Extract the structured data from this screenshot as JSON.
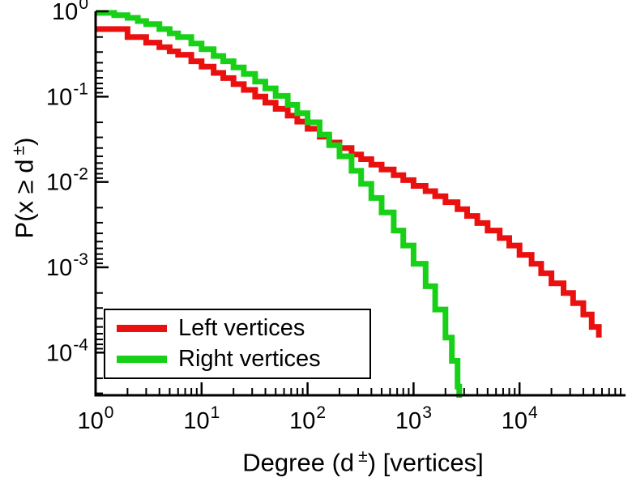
{
  "chart_data": {
    "type": "line",
    "scale": "log-log",
    "title": "",
    "xlabel": {
      "pre": "Degree (d",
      "sup": "±",
      "post": ") [vertices]"
    },
    "ylabel": {
      "pre": "P(x ≥ d",
      "sup": "±",
      "post": ")"
    },
    "tick_base": "10",
    "x_ticks": [
      "0",
      "1",
      "2",
      "3",
      "4"
    ],
    "y_ticks": [
      "0",
      "-1",
      "-2",
      "-3",
      "-4"
    ],
    "x_range_decades": [
      0,
      5
    ],
    "y_range_decades": [
      -4.5,
      0
    ],
    "grid": false,
    "line_width": 7,
    "axis_color": "#000000",
    "background": "#ffffff",
    "legend": {
      "position": "bottom-left",
      "entries": [
        "Left vertices",
        "Right vertices"
      ]
    },
    "series": [
      {
        "name": "Left vertices",
        "color": "#ea1010",
        "points": [
          [
            1,
            0.62
          ],
          [
            2,
            0.5
          ],
          [
            3,
            0.43
          ],
          [
            4,
            0.38
          ],
          [
            5,
            0.34
          ],
          [
            6,
            0.31
          ],
          [
            8,
            0.26
          ],
          [
            10,
            0.225
          ],
          [
            13,
            0.19
          ],
          [
            16,
            0.165
          ],
          [
            20,
            0.14
          ],
          [
            25,
            0.12
          ],
          [
            32,
            0.1
          ],
          [
            40,
            0.085
          ],
          [
            50,
            0.072
          ],
          [
            65,
            0.06
          ],
          [
            80,
            0.051
          ],
          [
            100,
            0.042
          ],
          [
            130,
            0.034
          ],
          [
            160,
            0.029
          ],
          [
            200,
            0.025
          ],
          [
            260,
            0.021
          ],
          [
            320,
            0.0185
          ],
          [
            400,
            0.016
          ],
          [
            500,
            0.014
          ],
          [
            650,
            0.012
          ],
          [
            800,
            0.0105
          ],
          [
            1000,
            0.009
          ],
          [
            1300,
            0.0078
          ],
          [
            1600,
            0.0068
          ],
          [
            2000,
            0.0058
          ],
          [
            2600,
            0.0048
          ],
          [
            3200,
            0.004
          ],
          [
            4000,
            0.0033
          ],
          [
            5000,
            0.0027
          ],
          [
            6500,
            0.0022
          ],
          [
            8000,
            0.0018
          ],
          [
            10000,
            0.0014
          ],
          [
            13000,
            0.0011
          ],
          [
            16000,
            0.00085
          ],
          [
            20000,
            0.00065
          ],
          [
            26000,
            0.0005
          ],
          [
            32000,
            0.00038
          ],
          [
            40000,
            0.00028
          ],
          [
            48000,
            0.0002
          ],
          [
            56000,
            0.00015
          ]
        ]
      },
      {
        "name": "Right vertices",
        "color": "#18d018",
        "points": [
          [
            1,
            0.96
          ],
          [
            1.5,
            0.9
          ],
          [
            2,
            0.84
          ],
          [
            2.5,
            0.77
          ],
          [
            3,
            0.71
          ],
          [
            4,
            0.62
          ],
          [
            5,
            0.55
          ],
          [
            6,
            0.5
          ],
          [
            8,
            0.42
          ],
          [
            10,
            0.36
          ],
          [
            13,
            0.3
          ],
          [
            16,
            0.26
          ],
          [
            20,
            0.22
          ],
          [
            25,
            0.185
          ],
          [
            32,
            0.15
          ],
          [
            40,
            0.125
          ],
          [
            50,
            0.102
          ],
          [
            65,
            0.08
          ],
          [
            80,
            0.064
          ],
          [
            100,
            0.05
          ],
          [
            130,
            0.036
          ],
          [
            160,
            0.027
          ],
          [
            200,
            0.02
          ],
          [
            260,
            0.0135
          ],
          [
            320,
            0.0095
          ],
          [
            400,
            0.0065
          ],
          [
            500,
            0.0044
          ],
          [
            650,
            0.0027
          ],
          [
            800,
            0.0018
          ],
          [
            1000,
            0.0011
          ],
          [
            1300,
            0.0006
          ],
          [
            1600,
            0.00032
          ],
          [
            2000,
            0.00015
          ],
          [
            2300,
            8e-05
          ],
          [
            2600,
            4e-05
          ],
          [
            2700,
            2e-05
          ]
        ]
      }
    ]
  }
}
